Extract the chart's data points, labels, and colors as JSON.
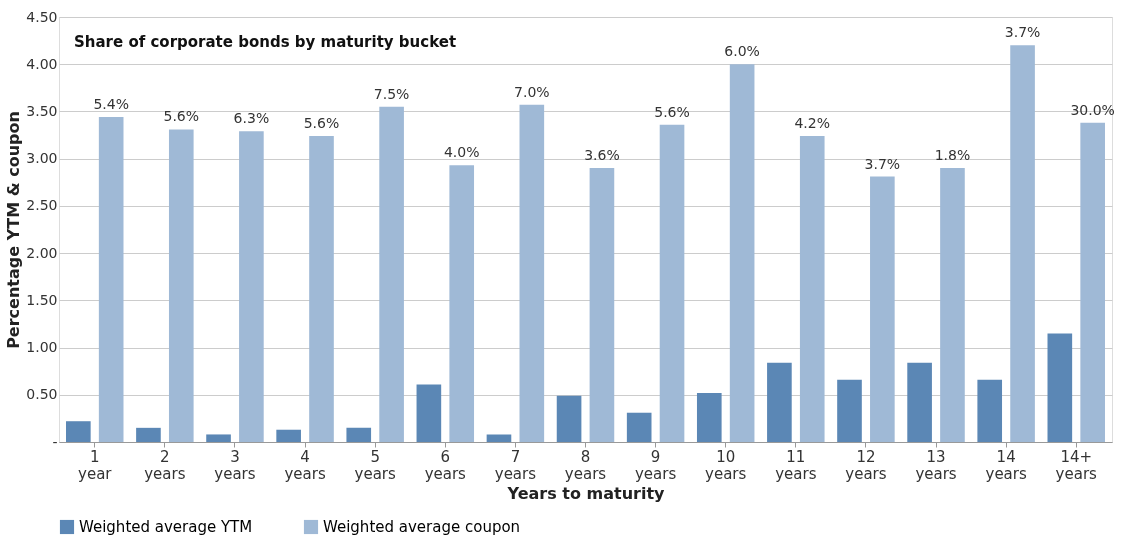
{
  "chart_data": {
    "type": "bar",
    "title": "Share of corporate bonds by maturity bucket",
    "xlabel": "Years to maturity",
    "ylabel": "Percentage YTM & coupon",
    "categories": [
      "1 year",
      "2 years",
      "3 years",
      "4 years",
      "5 years",
      "6 years",
      "7 years",
      "8 years",
      "9 years",
      "10 years",
      "11 years",
      "12 years",
      "13 years",
      "14 years",
      "14+ years"
    ],
    "series": [
      {
        "name": "Weighted average YTM",
        "color": "#5b87b5",
        "values": [
          0.22,
          0.15,
          0.08,
          0.13,
          0.15,
          0.61,
          0.08,
          0.49,
          0.31,
          0.52,
          0.84,
          0.66,
          0.84,
          0.66,
          1.15
        ]
      },
      {
        "name": "Weighted average coupon",
        "color": "#9fb9d6",
        "values": [
          3.44,
          3.31,
          3.29,
          3.24,
          3.55,
          2.93,
          3.57,
          2.9,
          3.36,
          4.0,
          3.24,
          2.81,
          2.9,
          4.2,
          3.38
        ]
      }
    ],
    "annotations": [
      {
        "text": "5.4%",
        "x": "1 year",
        "y": 3.44
      },
      {
        "text": "5.6%",
        "x": "2 years",
        "y": 3.31
      },
      {
        "text": "6.3%",
        "x": "3 years",
        "y": 3.29
      },
      {
        "text": "5.6%",
        "x": "4 years",
        "y": 3.24
      },
      {
        "text": "7.5%",
        "x": "5 years",
        "y": 3.55
      },
      {
        "text": "4.0%",
        "x": "6 years",
        "y": 2.93
      },
      {
        "text": "7.0%",
        "x": "7 years",
        "y": 3.57
      },
      {
        "text": "3.6%",
        "x": "8 years",
        "y": 2.9
      },
      {
        "text": "5.6%",
        "x": "9 years",
        "y": 3.36
      },
      {
        "text": "6.0%",
        "x": "10 years",
        "y": 4.0
      },
      {
        "text": "4.2%",
        "x": "11 years",
        "y": 3.24
      },
      {
        "text": "3.7%",
        "x": "12 years",
        "y": 2.81
      },
      {
        "text": "1.8%",
        "x": "13 years",
        "y": 2.9
      },
      {
        "text": "3.7%",
        "x": "14 years",
        "y": 4.2
      },
      {
        "text": "30.0%",
        "x": "14+ years",
        "y": 3.38
      }
    ],
    "ylim": [
      0,
      4.5
    ],
    "yticks": [
      {
        "value": 0,
        "label": "-"
      },
      {
        "value": 0.5,
        "label": "0.50"
      },
      {
        "value": 1,
        "label": "1.00"
      },
      {
        "value": 1.5,
        "label": "1.50"
      },
      {
        "value": 2,
        "label": "2.00"
      },
      {
        "value": 2.5,
        "label": "2.50"
      },
      {
        "value": 3,
        "label": "3.00"
      },
      {
        "value": 3.5,
        "label": "3.50"
      },
      {
        "value": 4,
        "label": "4.00"
      },
      {
        "value": 4.5,
        "label": "4.50"
      }
    ],
    "grid": "y",
    "legend": "bottom"
  }
}
